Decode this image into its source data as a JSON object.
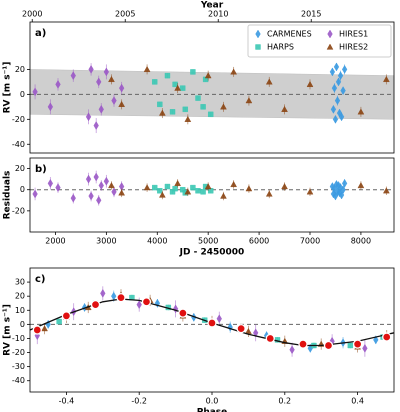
{
  "chart_data": [
    {
      "type": "scatter",
      "label": "a)",
      "ylabel": "RV [m s⁻¹]",
      "x2label": "Year",
      "xlim": [
        1500,
        8650
      ],
      "x2lim": [
        1999.88,
        2019.45
      ],
      "x2ticks": [
        2000,
        2005,
        2010,
        2015
      ],
      "ylim": [
        -47,
        58
      ],
      "yticks": [
        -40,
        -20,
        0,
        20
      ],
      "legend": "upper right",
      "model_band": {
        "x": [
          1500,
          8650
        ],
        "upper": [
          20,
          15
        ],
        "lower": [
          -16,
          -20
        ]
      },
      "series": [
        {
          "name": "CARMENES",
          "color": "#3b9ae1",
          "marker": "diamond",
          "x": [
            7440,
            7460,
            7480,
            7500,
            7520,
            7540,
            7560,
            7580,
            7600,
            7620,
            7650,
            7680
          ],
          "values": [
            18,
            -12,
            5,
            -20,
            22,
            -5,
            10,
            -15,
            15,
            -18,
            3,
            20
          ],
          "errors": [
            3,
            3,
            4,
            3,
            3,
            4,
            3,
            3,
            4,
            3,
            3,
            4
          ]
        },
        {
          "name": "HARPS",
          "color": "#3cc8b4",
          "marker": "square",
          "x": [
            3950,
            4050,
            4200,
            4300,
            4350,
            4500,
            4550,
            4700,
            4800,
            4900,
            4950,
            5050
          ],
          "values": [
            10,
            -8,
            15,
            -14,
            8,
            5,
            -12,
            18,
            -3,
            -10,
            12,
            -16
          ],
          "errors": [
            2,
            2,
            2,
            2,
            2,
            2,
            2,
            2,
            2,
            2,
            2,
            2
          ]
        },
        {
          "name": "HIRES1",
          "color": "#9b59c6",
          "marker": "diamond",
          "x": [
            1600,
            1900,
            2050,
            2350,
            2650,
            2700,
            2800,
            2850,
            2900,
            3000,
            3150,
            3300
          ],
          "values": [
            2,
            -10,
            8,
            15,
            -18,
            20,
            -25,
            10,
            -12,
            18,
            -5,
            5
          ],
          "errors": [
            6,
            6,
            5,
            5,
            6,
            5,
            6,
            5,
            5,
            6,
            5,
            5
          ]
        },
        {
          "name": "HIRES2",
          "color": "#8b4513",
          "marker": "triangle",
          "x": [
            3100,
            3300,
            3800,
            4100,
            4400,
            4600,
            5000,
            5300,
            5500,
            5800,
            6200,
            6500,
            7000,
            8000,
            8500
          ],
          "values": [
            12,
            -8,
            20,
            -15,
            5,
            -20,
            15,
            -10,
            18,
            -5,
            10,
            -12,
            8,
            -14,
            12
          ],
          "errors": [
            4,
            4,
            4,
            4,
            4,
            4,
            4,
            4,
            4,
            4,
            4,
            4,
            4,
            4,
            4
          ]
        }
      ]
    },
    {
      "type": "scatter",
      "label": "b)",
      "ylabel": "Residuals",
      "xlabel": "JD - 2450000",
      "xlim": [
        1500,
        8650
      ],
      "xticks": [
        2000,
        3000,
        4000,
        5000,
        6000,
        7000,
        8000
      ],
      "ylim": [
        -40,
        30
      ],
      "yticks": [
        -20,
        0,
        20
      ],
      "series": [
        {
          "name": "CARMENES",
          "color": "#3b9ae1",
          "marker": "diamond",
          "x": [
            7440,
            7460,
            7480,
            7500,
            7520,
            7540,
            7560,
            7580,
            7600,
            7620,
            7650,
            7680
          ],
          "values": [
            3,
            -4,
            1,
            -6,
            5,
            -2,
            4,
            -3,
            2,
            -5,
            0,
            6
          ],
          "errors": [
            3,
            3,
            4,
            3,
            3,
            4,
            3,
            3,
            4,
            3,
            3,
            4
          ]
        },
        {
          "name": "HARPS",
          "color": "#3cc8b4",
          "marker": "square",
          "x": [
            3950,
            4050,
            4200,
            4300,
            4350,
            4500,
            4550,
            4700,
            4800,
            4900,
            4950,
            5050
          ],
          "values": [
            2,
            -1,
            3,
            -2,
            1,
            0,
            -3,
            2,
            -1,
            -2,
            3,
            -1
          ],
          "errors": [
            2,
            2,
            2,
            2,
            2,
            2,
            2,
            2,
            2,
            2,
            2,
            2
          ]
        },
        {
          "name": "HIRES1",
          "color": "#9b59c6",
          "marker": "diamond",
          "x": [
            1600,
            1900,
            2050,
            2350,
            2650,
            2700,
            2800,
            2850,
            2900,
            3000,
            3150,
            3300
          ],
          "values": [
            -4,
            6,
            2,
            -8,
            10,
            -6,
            12,
            -10,
            4,
            8,
            -2,
            3
          ],
          "errors": [
            6,
            6,
            5,
            5,
            6,
            5,
            6,
            5,
            5,
            6,
            5,
            5
          ]
        },
        {
          "name": "HIRES2",
          "color": "#8b4513",
          "marker": "triangle",
          "x": [
            3100,
            3300,
            3800,
            4100,
            4400,
            4600,
            5000,
            5300,
            5500,
            5800,
            6200,
            6500,
            7000,
            8000,
            8500
          ],
          "values": [
            4,
            -3,
            2,
            -5,
            6,
            -2,
            3,
            -6,
            5,
            1,
            -4,
            3,
            -2,
            4,
            -1
          ],
          "errors": [
            4,
            4,
            4,
            4,
            4,
            4,
            4,
            4,
            4,
            4,
            4,
            4,
            4,
            4,
            4
          ]
        }
      ]
    },
    {
      "type": "scatter",
      "label": "c)",
      "ylabel": "RV [m s⁻¹]",
      "xlabel": "Phase",
      "xlim": [
        -0.5,
        0.5
      ],
      "xticks": [
        -0.4,
        -0.2,
        {
          "value": 0,
          "label": "0.0"
        },
        0.2,
        0.4
      ],
      "ylim": [
        -48,
        40
      ],
      "yticks": [
        -40,
        -30,
        -20,
        -10,
        0,
        10,
        20,
        30
      ],
      "series": [
        {
          "name": "CARMENES",
          "color": "#3b9ae1",
          "marker": "diamond",
          "x": [
            -0.45,
            -0.35,
            -0.27,
            -0.15,
            -0.05,
            0.05,
            0.15,
            0.27,
            0.36,
            0.45
          ],
          "values": [
            0,
            12,
            20,
            15,
            5,
            -2,
            -8,
            -17,
            -13,
            -11
          ],
          "errors": [
            3,
            3,
            4,
            3,
            3,
            4,
            3,
            3,
            4,
            3
          ]
        },
        {
          "name": "HARPS",
          "color": "#3cc8b4",
          "marker": "square",
          "x": [
            -0.42,
            -0.32,
            -0.22,
            -0.12,
            -0.02,
            0.08,
            0.18,
            0.28,
            0.38,
            0.47
          ],
          "values": [
            2,
            15,
            19,
            12,
            3,
            -4,
            -11,
            -15,
            -15,
            -9
          ],
          "errors": [
            2,
            2,
            2,
            2,
            2,
            2,
            2,
            2,
            2,
            2
          ]
        },
        {
          "name": "HIRES1",
          "color": "#9b59c6",
          "marker": "diamond",
          "x": [
            -0.48,
            -0.38,
            -0.3,
            -0.2,
            -0.1,
            0.02,
            0.12,
            0.22,
            0.33,
            0.42
          ],
          "values": [
            -8,
            9,
            22,
            14,
            11,
            4,
            -6,
            -18,
            -12,
            -17
          ],
          "errors": [
            6,
            6,
            5,
            5,
            6,
            5,
            6,
            5,
            5,
            6
          ]
        },
        {
          "name": "HIRES2",
          "color": "#8b4513",
          "marker": "triangle",
          "x": [
            -0.46,
            -0.4,
            -0.34,
            -0.25,
            -0.17,
            -0.08,
            0,
            0.1,
            0.2,
            0.3,
            0.4,
            0.48
          ],
          "values": [
            -3,
            5,
            12,
            21,
            17,
            6,
            2,
            -5,
            -12,
            -14,
            -16,
            -8
          ],
          "errors": [
            4,
            4,
            4,
            4,
            4,
            4,
            4,
            4,
            4,
            4,
            4,
            4
          ]
        }
      ],
      "model": {
        "x": [
          -0.5,
          -0.4,
          -0.3,
          -0.25,
          -0.2,
          -0.1,
          0,
          0.1,
          0.2,
          0.25,
          0.3,
          0.4,
          0.5
        ],
        "values": [
          -4,
          7,
          16,
          18,
          17,
          10,
          1,
          -7,
          -13,
          -15,
          -15,
          -12,
          -6
        ]
      },
      "binned": {
        "x": [
          -0.48,
          -0.4,
          -0.32,
          -0.25,
          -0.18,
          -0.08,
          0,
          0.08,
          0.16,
          0.25,
          0.32,
          0.4,
          0.48
        ],
        "values": [
          -4,
          6,
          14,
          19,
          16,
          8,
          1,
          -3,
          -10,
          -14,
          -15,
          -14,
          -9
        ]
      }
    }
  ]
}
